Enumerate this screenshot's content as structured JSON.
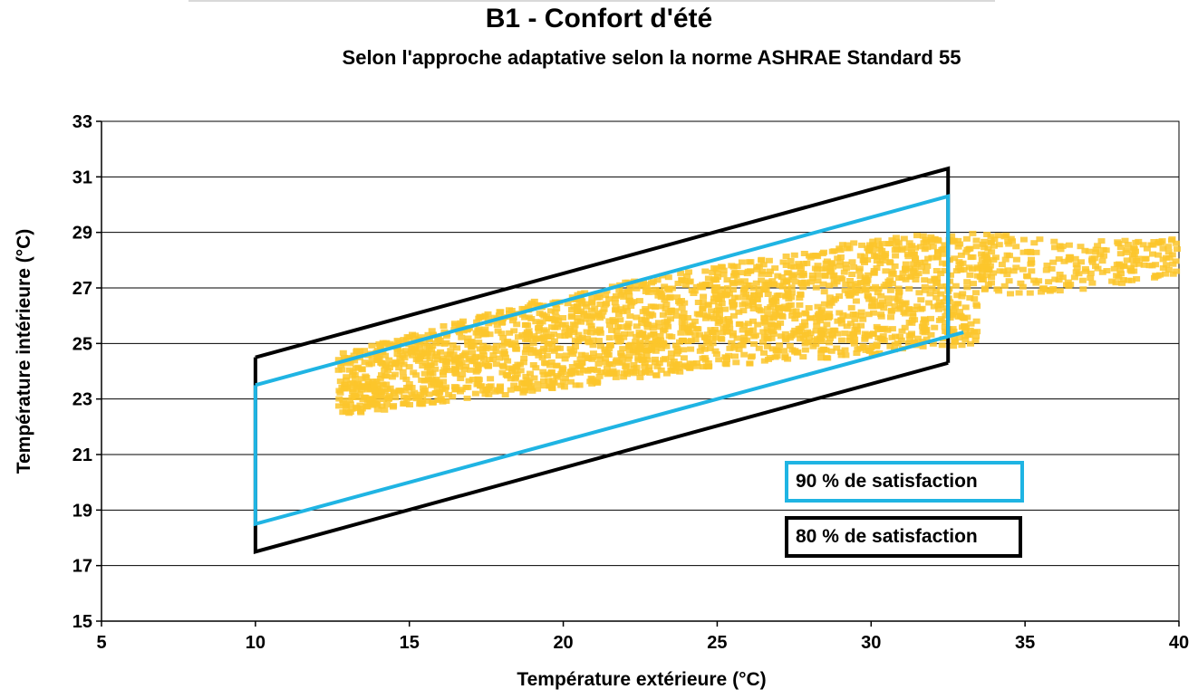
{
  "chart_data": {
    "type": "scatter",
    "title": "B1 - Confort d'été",
    "subtitle": "Selon l'approche adaptative selon la norme ASHRAE Standard 55",
    "xlabel": "Température extérieure (°C)",
    "ylabel": "Température intérieure (°C)",
    "xlim": [
      5,
      40
    ],
    "ylim": [
      15,
      33
    ],
    "xticks": [
      "5",
      "10",
      "15",
      "20",
      "25",
      "30",
      "35",
      "40"
    ],
    "yticks": [
      "15",
      "17",
      "19",
      "21",
      "23",
      "25",
      "27",
      "29",
      "31",
      "33"
    ],
    "grid": "horizontal",
    "scatter_color": "#fbc52b",
    "scatter_cloud": {
      "x_range": [
        12.7,
        40
      ],
      "lower_edge": [
        [
          12.7,
          22.4
        ],
        [
          20,
          23.4
        ],
        [
          25,
          24.1
        ],
        [
          30,
          24.6
        ],
        [
          33.5,
          25.0
        ]
      ],
      "upper_edge": [
        [
          13,
          24.7
        ],
        [
          20,
          26.8
        ],
        [
          25,
          27.8
        ],
        [
          30,
          28.8
        ],
        [
          33,
          29.0
        ],
        [
          37,
          28.7
        ],
        [
          40,
          28.8
        ]
      ]
    },
    "comfort_zones": [
      {
        "name": "90 % de satisfaction",
        "color": "#1fb4e3",
        "x_range": [
          10,
          32.5
        ],
        "upper": [
          [
            10,
            23.5
          ],
          [
            32.5,
            30.3
          ]
        ],
        "lower": [
          [
            10,
            18.5
          ],
          [
            33,
            25.4
          ]
        ]
      },
      {
        "name": "80 % de satisfaction",
        "color": "#000000",
        "x_range": [
          10,
          32.5
        ],
        "upper": [
          [
            10,
            24.5
          ],
          [
            32.5,
            31.3
          ]
        ],
        "lower": [
          [
            10,
            17.5
          ],
          [
            32.5,
            24.3
          ]
        ]
      }
    ],
    "legend": [
      {
        "label": "90 % de satisfaction",
        "color": "#1fb4e3"
      },
      {
        "label": "80 % de satisfaction",
        "color": "#000000"
      }
    ],
    "legend_placement": "bottom-right"
  }
}
